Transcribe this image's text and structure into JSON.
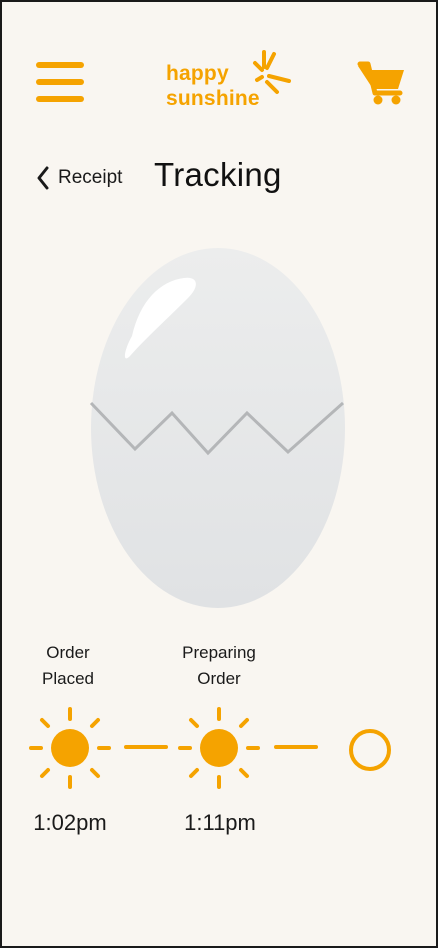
{
  "header": {
    "menu_icon": "hamburger-menu-icon",
    "logo_line1": "happy",
    "logo_line2": "sunshine",
    "cart_icon": "shopping-cart-icon"
  },
  "nav": {
    "back_label": "Receipt",
    "title": "Tracking"
  },
  "tracker": {
    "steps": [
      {
        "label_line1": "Order",
        "label_line2": "Placed",
        "time": "1:02pm",
        "status": "complete"
      },
      {
        "label_line1": "Preparing",
        "label_line2": "Order",
        "time": "1:11pm",
        "status": "complete"
      },
      {
        "label_line1": "",
        "label_line2": "",
        "time": "",
        "status": "pending"
      }
    ]
  },
  "colors": {
    "brand": "#f5a300",
    "background": "#f9f6f1",
    "egg": "#e6e7e9",
    "text": "#1a1a1a"
  }
}
